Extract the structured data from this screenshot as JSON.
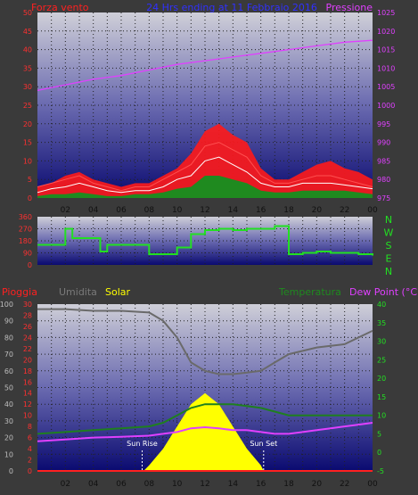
{
  "colors": {
    "background": "#3a3a3a",
    "wind_speed": "#ff2020",
    "wind_gust_fill": "#ff1a1a",
    "wind_avg": "#ffffff",
    "wind_low": "#1f8a1f",
    "pressure": "#e040ff",
    "direction": "#22e022",
    "humidity": "#6a6a6a",
    "solar": "#ffff00",
    "rain": "#ff2020",
    "temperature": "#1f7f1f",
    "dew_point": "#e040ff",
    "sun_marker": "#ffffff"
  },
  "header": {
    "left_label": "Forza vento",
    "center_label": "24 Hrs ending at 11 Febbraio 2016",
    "right_label": "Pressione"
  },
  "x_tick_labels": [
    "02",
    "04",
    "06",
    "08",
    "10",
    "12",
    "14",
    "16",
    "18",
    "20",
    "22",
    "00"
  ],
  "chart_data": [
    {
      "type": "line",
      "name": "wind-pressure",
      "x_range": [
        1,
        25
      ],
      "ylim_left": [
        0,
        50
      ],
      "ylim_right": [
        975,
        1025
      ],
      "yticks_left": [
        0,
        5,
        10,
        15,
        20,
        25,
        30,
        35,
        40,
        45,
        50
      ],
      "yticks_right": [
        975,
        980,
        985,
        990,
        995,
        1000,
        1005,
        1010,
        1015,
        1020,
        1025
      ],
      "grid": true,
      "series": [
        {
          "name": "Pressione",
          "axis": "right",
          "x": [
            1,
            3,
            5,
            7,
            9,
            11,
            13,
            15,
            17,
            19,
            21,
            23,
            25
          ],
          "values": [
            1004,
            1005.5,
            1007,
            1008,
            1009.5,
            1011,
            1012,
            1013,
            1014,
            1015,
            1016,
            1017,
            1017.5
          ]
        },
        {
          "name": "Forza vento",
          "axis": "left",
          "x": [
            1,
            2,
            3,
            4,
            5,
            6,
            7,
            8,
            9,
            10,
            11,
            12,
            13,
            14,
            15,
            16,
            17,
            18,
            19,
            20,
            21,
            22,
            23,
            24,
            25
          ],
          "values": [
            3,
            4,
            6,
            7,
            5,
            4,
            3,
            4,
            4,
            6,
            8,
            12,
            18,
            20,
            17,
            15,
            8,
            5,
            5,
            7,
            9,
            10,
            8,
            7,
            5
          ]
        },
        {
          "name": "gust",
          "axis": "left",
          "x": [
            1,
            2,
            3,
            4,
            5,
            6,
            7,
            8,
            9,
            10,
            11,
            12,
            13,
            14,
            15,
            16,
            17,
            18,
            19,
            20,
            21,
            22,
            23,
            24,
            25
          ],
          "values": [
            3,
            4,
            5,
            6,
            4,
            3,
            2,
            3,
            3,
            5,
            7,
            9,
            14,
            15,
            13,
            11,
            6,
            4,
            4,
            5,
            6,
            6,
            5,
            4,
            3
          ]
        },
        {
          "name": "average",
          "axis": "left",
          "x": [
            1,
            2,
            3,
            4,
            5,
            6,
            7,
            8,
            9,
            10,
            11,
            12,
            13,
            14,
            15,
            16,
            17,
            18,
            19,
            20,
            21,
            22,
            23,
            24,
            25
          ],
          "values": [
            1.5,
            2.5,
            3,
            4,
            3,
            2,
            1.5,
            2,
            2,
            3,
            5,
            6,
            10,
            11,
            9,
            7,
            4,
            3,
            3,
            4,
            4,
            4,
            3.5,
            3,
            2.5
          ]
        },
        {
          "name": "low",
          "axis": "left",
          "x": [
            1,
            2,
            3,
            4,
            5,
            6,
            7,
            8,
            9,
            10,
            11,
            12,
            13,
            14,
            15,
            16,
            17,
            18,
            19,
            20,
            21,
            22,
            23,
            24,
            25
          ],
          "values": [
            0.5,
            1,
            1,
            1.5,
            1,
            0.5,
            0.5,
            1,
            1,
            1.5,
            2.5,
            3,
            6,
            6,
            5,
            4,
            2,
            1.5,
            1.5,
            2,
            2,
            2,
            2,
            1.5,
            1
          ]
        }
      ]
    },
    {
      "type": "line",
      "name": "wind-direction",
      "x_range": [
        1,
        25
      ],
      "ylim_left": [
        0,
        360
      ],
      "yticks_left": [
        0,
        90,
        180,
        270,
        360
      ],
      "right_labels": [
        "N",
        "W",
        "S",
        "E",
        "N"
      ],
      "grid": true,
      "series": [
        {
          "name": "direction",
          "x": [
            1,
            2,
            3,
            3.5,
            4,
            5,
            5.5,
            6,
            7,
            8,
            9,
            10,
            11,
            12,
            13,
            14,
            15,
            16,
            17,
            18,
            18.7,
            19,
            20,
            21,
            22,
            23,
            24,
            25
          ],
          "values": [
            150,
            150,
            270,
            200,
            200,
            200,
            100,
            150,
            150,
            150,
            80,
            80,
            130,
            230,
            260,
            270,
            260,
            270,
            270,
            290,
            290,
            80,
            90,
            100,
            90,
            90,
            80,
            70
          ]
        }
      ]
    },
    {
      "type": "area",
      "name": "temperature-solar",
      "x_range": [
        1,
        25
      ],
      "ylim_outer_left": [
        0,
        100
      ],
      "ylim_left": [
        0,
        30
      ],
      "ylim_right": [
        -5,
        40
      ],
      "yticks_outer_left": [
        0,
        10,
        20,
        30,
        40,
        50,
        60,
        70,
        80,
        90,
        100
      ],
      "yticks_left": [
        0,
        2,
        4,
        6,
        8,
        10,
        12,
        14,
        16,
        18,
        20,
        22,
        24,
        26,
        28,
        30
      ],
      "yticks_right": [
        -5,
        0,
        5,
        10,
        15,
        20,
        25,
        30,
        35,
        40
      ],
      "legend": [
        "Pioggia",
        "Umidita",
        "Solar",
        "Temperatura",
        "Dew Point (°C)"
      ],
      "grid": true,
      "annotations": [
        {
          "text": "Sun Rise",
          "x": 8.5
        },
        {
          "text": "Sun Set",
          "x": 17.2
        }
      ],
      "series": [
        {
          "name": "Umidita",
          "axis": "outer_left",
          "x": [
            1,
            3,
            5,
            7,
            9,
            10,
            11,
            12,
            13,
            14,
            15,
            16,
            17,
            18,
            19,
            20,
            21,
            22,
            23,
            24,
            25
          ],
          "values": [
            97,
            97,
            96,
            96,
            95,
            90,
            80,
            65,
            60,
            58,
            58,
            59,
            60,
            65,
            70,
            72,
            74,
            75,
            76,
            80,
            84
          ]
        },
        {
          "name": "Temperatura",
          "axis": "right",
          "x": [
            1,
            3,
            5,
            7,
            9,
            10,
            11,
            12,
            13,
            14,
            15,
            16,
            17,
            18,
            19,
            20,
            21,
            22,
            23,
            24,
            25
          ],
          "values": [
            5,
            5.5,
            6,
            6.5,
            7,
            8,
            10,
            12,
            13,
            13,
            13,
            12.5,
            12,
            11,
            10,
            10,
            10,
            10,
            10,
            10,
            10
          ]
        },
        {
          "name": "Dew Point (°C)",
          "axis": "right",
          "x": [
            1,
            3,
            5,
            7,
            9,
            10,
            11,
            12,
            13,
            14,
            15,
            16,
            17,
            18,
            19,
            20,
            21,
            22,
            23,
            24,
            25
          ],
          "values": [
            3,
            3.5,
            4,
            4.2,
            4.5,
            5,
            5.5,
            6.5,
            6.8,
            6.5,
            6,
            6,
            5.5,
            5,
            5,
            5.5,
            6,
            6.5,
            7,
            7.5,
            8
          ]
        },
        {
          "name": "Solar",
          "axis": "left",
          "x": [
            8.6,
            9,
            10,
            11,
            11.5,
            12,
            12.5,
            13,
            13.5,
            14,
            14.5,
            15,
            16,
            17,
            17.2
          ],
          "values": [
            0,
            1,
            4,
            8,
            10,
            12,
            13,
            14,
            13,
            12,
            10,
            8,
            4,
            1,
            0
          ]
        },
        {
          "name": "Pioggia",
          "axis": "left",
          "x": [
            1,
            25
          ],
          "values": [
            0,
            0
          ]
        }
      ]
    }
  ]
}
